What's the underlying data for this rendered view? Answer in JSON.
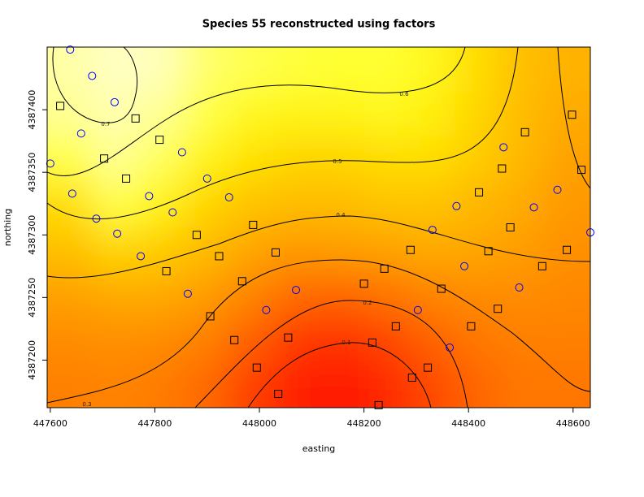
{
  "chart_data": {
    "type": "image-contour",
    "title": "Species 55 reconstructed using factors",
    "x_label": "easting",
    "y_label": "northing",
    "xlim": [
      447594,
      448633
    ],
    "ylim": [
      4387162,
      4387450
    ],
    "xticks": [
      447600,
      447800,
      448000,
      448200,
      448400,
      448600
    ],
    "yticks": [
      4387200,
      4387250,
      4387300,
      4387350,
      4387400
    ],
    "z": [
      [
        0.72,
        0.75,
        0.74,
        0.66,
        0.63,
        0.61,
        0.6,
        0.6,
        0.58,
        0.52,
        0.45,
        0.42
      ],
      [
        0.7,
        0.73,
        0.7,
        0.62,
        0.58,
        0.57,
        0.57,
        0.58,
        0.56,
        0.5,
        0.44,
        0.4
      ],
      [
        0.62,
        0.7,
        0.64,
        0.57,
        0.53,
        0.5,
        0.5,
        0.52,
        0.52,
        0.48,
        0.43,
        0.38
      ],
      [
        0.52,
        0.62,
        0.57,
        0.5,
        0.46,
        0.44,
        0.44,
        0.46,
        0.46,
        0.43,
        0.4,
        0.36
      ],
      [
        0.45,
        0.5,
        0.48,
        0.44,
        0.39,
        0.36,
        0.37,
        0.38,
        0.4,
        0.39,
        0.37,
        0.34
      ],
      [
        0.38,
        0.4,
        0.4,
        0.37,
        0.31,
        0.25,
        0.24,
        0.27,
        0.31,
        0.33,
        0.33,
        0.32
      ],
      [
        0.33,
        0.34,
        0.33,
        0.3,
        0.22,
        0.14,
        0.12,
        0.16,
        0.23,
        0.28,
        0.3,
        0.3
      ],
      [
        0.3,
        0.31,
        0.29,
        0.25,
        0.15,
        0.08,
        0.06,
        0.1,
        0.17,
        0.24,
        0.28,
        0.28
      ]
    ],
    "contour_levels": [
      0.1,
      0.2,
      0.3,
      0.4,
      0.5,
      0.6,
      0.7
    ],
    "series": [
      {
        "marker": "circle",
        "color": "#0000ff",
        "x": [
          447638,
          447680,
          447723,
          447659,
          447600,
          447642,
          447688,
          447728,
          447773,
          447789,
          447834,
          447852,
          447900,
          447942,
          447863,
          448013,
          448070,
          448303,
          448364,
          448331,
          448377,
          448392,
          448467,
          448525,
          448570,
          448633,
          448497
        ],
        "y": [
          4387448,
          4387427,
          4387406,
          4387381,
          4387357,
          4387333,
          4387313,
          4387301,
          4387283,
          4387331,
          4387318,
          4387366,
          4387345,
          4387330,
          4387253,
          4387240,
          4387256,
          4387240,
          4387210,
          4387304,
          4387323,
          4387275,
          4387370,
          4387322,
          4387336,
          4387302,
          4387258
        ]
      },
      {
        "marker": "square",
        "color": "#000000",
        "x": [
          447619,
          447763,
          447703,
          447745,
          447809,
          447880,
          447923,
          447822,
          447967,
          447906,
          447952,
          447988,
          448031,
          447995,
          448036,
          448055,
          448200,
          448239,
          448289,
          448261,
          448292,
          448322,
          448216,
          448228,
          448348,
          448405,
          448420,
          448438,
          448464,
          448480,
          448456,
          448508,
          448541,
          448588,
          448598,
          448616
        ],
        "y": [
          4387403,
          4387393,
          4387361,
          4387345,
          4387376,
          4387300,
          4387283,
          4387271,
          4387263,
          4387235,
          4387216,
          4387308,
          4387286,
          4387194,
          4387173,
          4387218,
          4387261,
          4387273,
          4387288,
          4387227,
          4387186,
          4387194,
          4387214,
          4387164,
          4387257,
          4387227,
          4387334,
          4387287,
          4387353,
          4387306,
          4387241,
          4387382,
          4387275,
          4387288,
          4387396,
          4387352
        ]
      }
    ]
  }
}
